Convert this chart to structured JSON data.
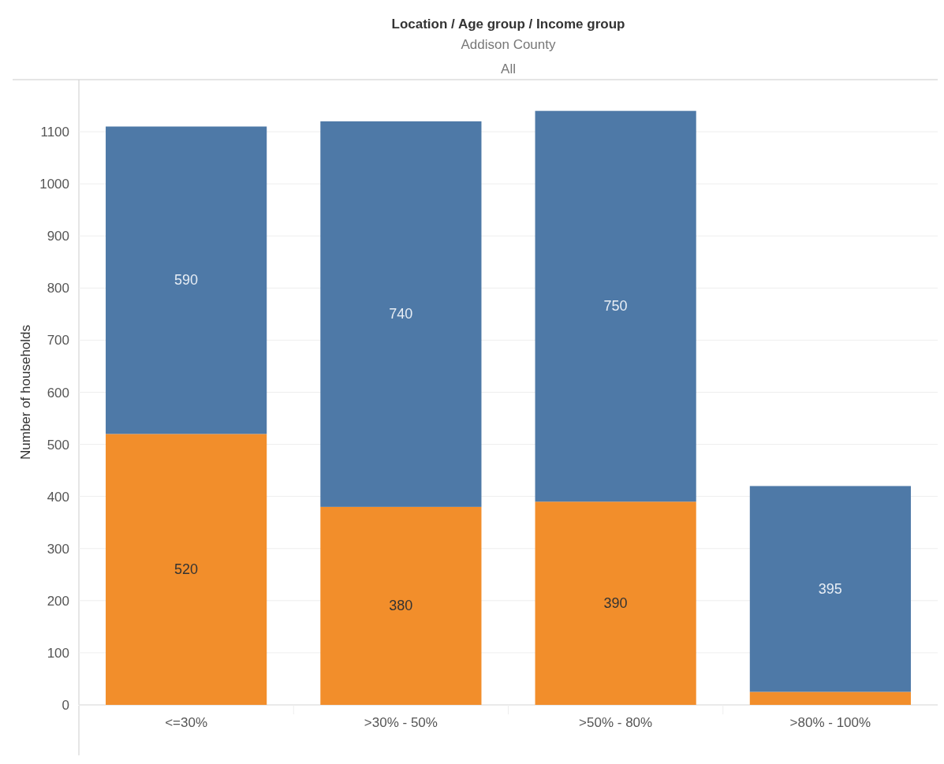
{
  "chart_data": {
    "type": "bar",
    "title": "Location / Age group / Income group",
    "subtitle": "Addison County",
    "annotations": [
      "All"
    ],
    "ylabel": "Number of households",
    "categories": [
      "<=30%",
      ">30% - 50%",
      ">50% - 80%",
      ">80% - 100%"
    ],
    "stacked": true,
    "series": [
      {
        "color": "#f28e2b",
        "values": [
          520,
          380,
          390,
          25
        ],
        "value_labels": [
          "520",
          "380",
          "390",
          null
        ]
      },
      {
        "color": "#4e79a7",
        "values": [
          590,
          740,
          750,
          395
        ],
        "value_labels": [
          "590",
          "740",
          "750",
          "395"
        ]
      }
    ],
    "ylim": [
      0,
      1200
    ],
    "yticks": [
      0,
      100,
      200,
      300,
      400,
      500,
      600,
      700,
      800,
      900,
      1000,
      1100
    ],
    "grid": "y"
  }
}
